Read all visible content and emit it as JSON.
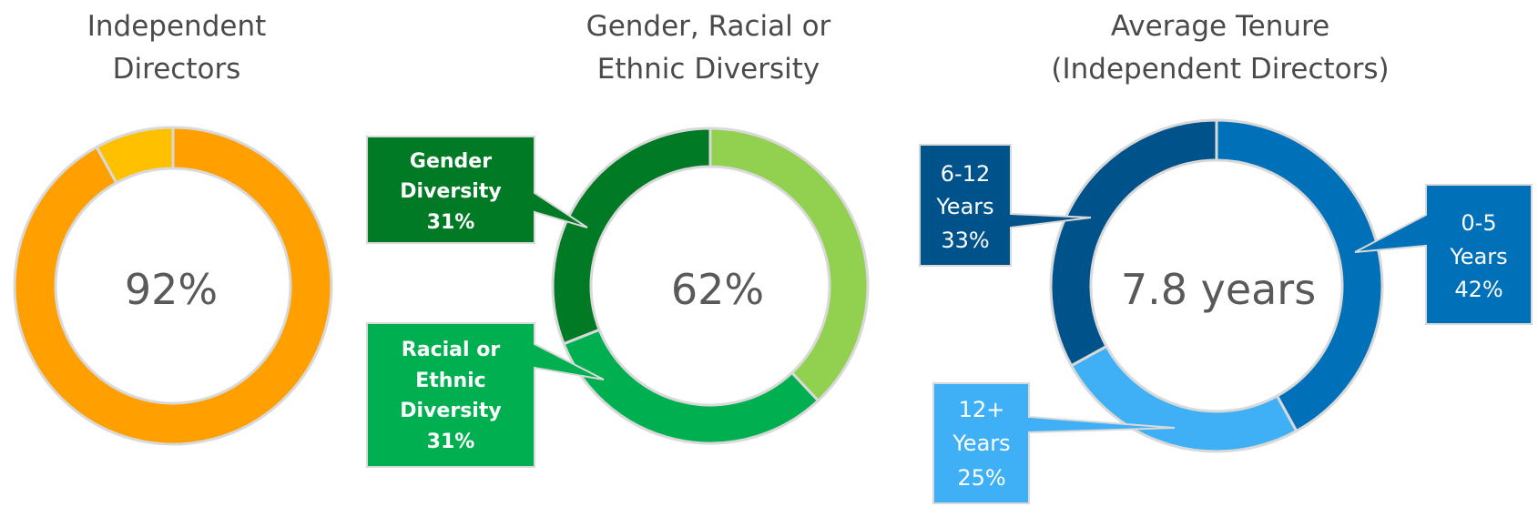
{
  "chart_data": [
    {
      "type": "donut",
      "title": [
        "Independent",
        "Directors"
      ],
      "center_label": "92%",
      "series": [
        {
          "values": [
            92,
            8
          ],
          "colors": [
            "#FF9F00",
            "#FFC000"
          ]
        }
      ]
    },
    {
      "type": "donut",
      "title": [
        "Gender, Racial or",
        "Ethnic Diversity"
      ],
      "center_label": "62%",
      "series": [
        {
          "values": [
            38,
            31,
            31
          ],
          "colors": [
            "#92D050",
            "#00B050",
            "#007A25"
          ]
        }
      ],
      "callouts": [
        {
          "lines": [
            "Gender",
            "Diversity",
            "31%"
          ],
          "color": "#007A25"
        },
        {
          "lines": [
            "Racial or",
            "Ethnic",
            "Diversity",
            "31%"
          ],
          "color": "#00B050"
        }
      ]
    },
    {
      "type": "donut",
      "title": [
        "Average Tenure",
        "(Independent Directors)"
      ],
      "center_label": "7.8 years",
      "series": [
        {
          "values": [
            42,
            25,
            33
          ],
          "colors": [
            "#0070B8",
            "#3FB0F5",
            "#00538A"
          ]
        }
      ],
      "callouts": [
        {
          "lines": [
            "0-5",
            "Years",
            "42%"
          ],
          "color": "#0070B8"
        },
        {
          "lines": [
            "12+",
            "Years",
            "25%"
          ],
          "color": "#3FB0F5"
        },
        {
          "lines": [
            "6-12",
            "Years",
            "33%"
          ],
          "color": "#00538A"
        }
      ]
    }
  ]
}
